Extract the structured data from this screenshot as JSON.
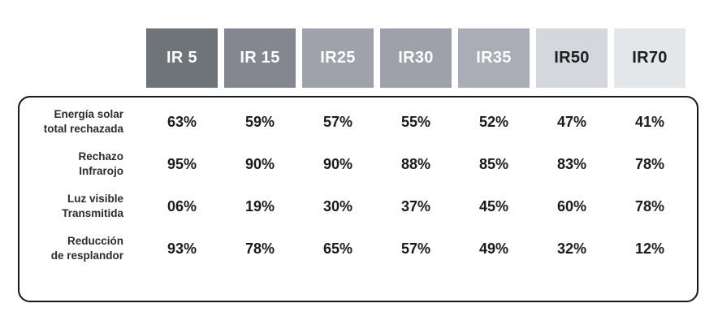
{
  "table": {
    "columns": [
      {
        "label": "IR 5",
        "bg": "#6e7478",
        "text_color": "#ffffff"
      },
      {
        "label": "IR 15",
        "bg": "#84878f",
        "text_color": "#ffffff"
      },
      {
        "label": "IR25",
        "bg": "#9fa2ab",
        "text_color": "#ffffff"
      },
      {
        "label": "IR30",
        "bg": "#9ea1aa",
        "text_color": "#ffffff"
      },
      {
        "label": "IR35",
        "bg": "#aaadb5",
        "text_color": "#ffffff"
      },
      {
        "label": "IR50",
        "bg": "#d4d8dc",
        "text_color": "#1c1e21"
      },
      {
        "label": "IR70",
        "bg": "#e4e7e9",
        "text_color": "#1c1e21"
      }
    ],
    "rows": [
      {
        "label_line1": "Energía solar",
        "label_line2": "total rechazada",
        "values": [
          "63%",
          "59%",
          "57%",
          "55%",
          "52%",
          "47%",
          "41%"
        ]
      },
      {
        "label_line1": "Rechazo",
        "label_line2": "Infrarojo",
        "values": [
          "95%",
          "90%",
          "90%",
          "88%",
          "85%",
          "83%",
          "78%"
        ]
      },
      {
        "label_line1": "Luz visible",
        "label_line2": "Transmitida",
        "values": [
          "06%",
          "19%",
          "30%",
          "37%",
          "45%",
          "60%",
          "78%"
        ]
      },
      {
        "label_line1": "Reducción",
        "label_line2": "de resplandor",
        "values": [
          "93%",
          "78%",
          "65%",
          "57%",
          "49%",
          "32%",
          "12%"
        ]
      }
    ]
  },
  "chart_data": {
    "type": "table",
    "categories": [
      "IR 5",
      "IR 15",
      "IR25",
      "IR30",
      "IR35",
      "IR50",
      "IR70"
    ],
    "series": [
      {
        "name": "Energía solar total rechazada",
        "values": [
          63,
          59,
          57,
          55,
          52,
          47,
          41
        ]
      },
      {
        "name": "Rechazo Infrarojo",
        "values": [
          95,
          90,
          90,
          88,
          85,
          83,
          78
        ]
      },
      {
        "name": "Luz visible Transmitida",
        "values": [
          6,
          19,
          30,
          37,
          45,
          60,
          78
        ]
      },
      {
        "name": "Reducción de resplandor",
        "values": [
          93,
          78,
          65,
          57,
          49,
          32,
          12
        ]
      }
    ],
    "title": "",
    "unit": "%"
  }
}
